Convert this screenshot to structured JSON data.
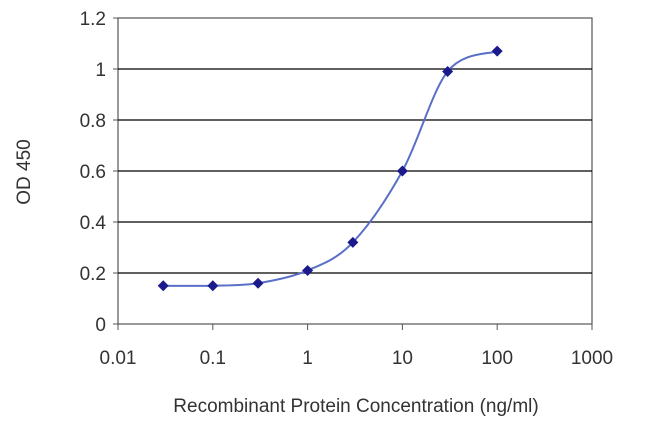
{
  "chart_data": {
    "type": "line",
    "title": "",
    "xlabel": "Recombinant Protein Concentration (ng/ml)",
    "ylabel": "OD 450",
    "x_scale": "log",
    "xlim": [
      0.01,
      1000
    ],
    "ylim": [
      0,
      1.2
    ],
    "x_ticks": [
      "0.01",
      "0.1",
      "1",
      "10",
      "100",
      "1000"
    ],
    "y_ticks": [
      "0",
      "0.2",
      "0.4",
      "0.6",
      "0.8",
      "1",
      "1.2"
    ],
    "grid": "horizontal",
    "legend": "none",
    "series": [
      {
        "x": [
          0.03,
          0.1,
          0.3,
          1,
          3,
          10,
          30,
          100
        ],
        "y": [
          0.15,
          0.15,
          0.16,
          0.21,
          0.32,
          0.6,
          0.99,
          1.07
        ]
      }
    ],
    "colors": {
      "series": "#1a1a8c",
      "curve": "#5a6fc8",
      "grid": "#000000",
      "plot_background": "#ffffff",
      "axis": "#555555"
    }
  }
}
